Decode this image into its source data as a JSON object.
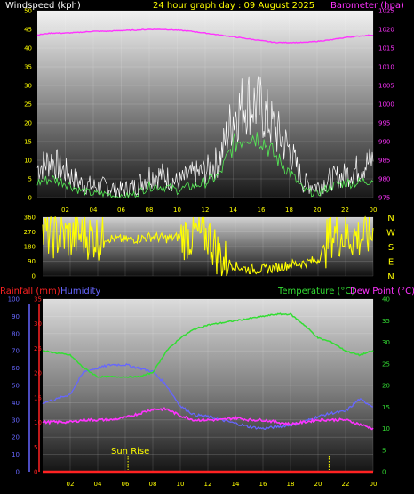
{
  "header": {
    "left_title": "Windspeed (kph)",
    "center_title": "24 hour graph day : 09 August 2025",
    "right_title": "Barometer (hpa)"
  },
  "bottom_header": {
    "rainfall_label": "Rainfall (mm)",
    "humidity_label": "Humidity",
    "temperature_label": "Temperature (°C)",
    "dewpoint_label": "Dew Point (°C)"
  },
  "colors": {
    "windspeed_title": "#ffffff",
    "center_title": "#ffff00",
    "barometer": "#ff33ff",
    "wind_gust": "#ffffff",
    "wind_avg": "#55ee55",
    "direction": "#ffff00",
    "rainfall": "#ff2222",
    "humidity": "#6666ff",
    "temperature": "#33dd33",
    "dewpoint": "#ff33ff",
    "axis_ticks": "#ffff00"
  },
  "annotations": {
    "sunrise": "Sun Rise"
  },
  "chart_data": [
    {
      "type": "line",
      "x_ticks": [
        "02",
        "04",
        "06",
        "08",
        "10",
        "12",
        "14",
        "16",
        "18",
        "20",
        "22",
        "00"
      ],
      "left_axis": {
        "label": "Windspeed (kph)",
        "range": [
          0,
          50
        ],
        "ticks": [
          0,
          5,
          10,
          15,
          20,
          25,
          30,
          35,
          40,
          45,
          50
        ]
      },
      "right_axis": {
        "label": "Barometer (hpa)",
        "range": [
          975,
          1025
        ],
        "ticks": [
          975,
          980,
          985,
          990,
          995,
          1000,
          1005,
          1010,
          1015,
          1020,
          1025
        ]
      },
      "x_hours": [
        0,
        1,
        2,
        3,
        4,
        5,
        6,
        7,
        8,
        9,
        10,
        11,
        12,
        13,
        14,
        15,
        16,
        17,
        18,
        19,
        20,
        21,
        22,
        23,
        24
      ],
      "series": [
        {
          "name": "Barometer",
          "axis": "right",
          "values": [
            1018.5,
            1019,
            1019,
            1019.2,
            1019.5,
            1019.5,
            1019.7,
            1019.8,
            1020,
            1020,
            1019.8,
            1019.5,
            1019,
            1018.5,
            1018,
            1017.5,
            1017,
            1016.5,
            1016.5,
            1016.5,
            1016.8,
            1017.2,
            1017.8,
            1018.2,
            1018.5
          ]
        },
        {
          "name": "Wind gust",
          "axis": "left",
          "values": [
            8,
            10,
            7,
            4,
            3,
            3,
            2,
            3,
            6,
            6,
            4,
            6,
            7,
            10,
            22,
            26,
            24,
            18,
            13,
            4,
            3,
            5,
            6,
            8,
            10
          ]
        },
        {
          "name": "Wind average",
          "axis": "left",
          "values": [
            4,
            5,
            4,
            2,
            1,
            1,
            0,
            1,
            3,
            3,
            2,
            3,
            4,
            6,
            14,
            17,
            16,
            11,
            7,
            2,
            1,
            3,
            4,
            4,
            5
          ]
        }
      ]
    },
    {
      "type": "line",
      "x_ticks": [
        "02",
        "04",
        "06",
        "08",
        "10",
        "12",
        "14",
        "16",
        "18",
        "20",
        "22",
        "00"
      ],
      "left_axis": {
        "range": [
          0,
          360
        ],
        "ticks": [
          0,
          90,
          180,
          270,
          360
        ]
      },
      "right_labels": [
        "N",
        "W",
        "S",
        "E",
        "N"
      ],
      "x_hours": [
        0,
        1,
        2,
        3,
        4,
        5,
        6,
        7,
        8,
        9,
        10,
        11,
        12,
        13,
        14,
        15,
        16,
        17,
        18,
        19,
        20,
        21,
        22,
        23,
        24
      ],
      "series": [
        {
          "name": "Wind direction",
          "values": [
            260,
            250,
            240,
            250,
            240,
            230,
            220,
            230,
            240,
            230,
            240,
            250,
            250,
            100,
            60,
            40,
            40,
            50,
            70,
            80,
            100,
            260,
            250,
            240,
            260
          ]
        }
      ]
    },
    {
      "type": "line",
      "x_ticks": [
        "02",
        "04",
        "06",
        "08",
        "10",
        "12",
        "14",
        "16",
        "18",
        "20",
        "22",
        "00"
      ],
      "axes": {
        "humidity": {
          "range": [
            0,
            100
          ],
          "ticks": [
            0,
            10,
            20,
            30,
            40,
            50,
            60,
            70,
            80,
            90,
            100
          ]
        },
        "rainfall": {
          "range": [
            0,
            35
          ],
          "ticks": [
            0,
            5,
            10,
            15,
            20,
            25,
            30,
            35
          ]
        },
        "temperature": {
          "range": [
            0,
            40
          ],
          "ticks": [
            0,
            5,
            10,
            15,
            20,
            25,
            30,
            35,
            40
          ]
        }
      },
      "x_hours": [
        0,
        1,
        2,
        3,
        4,
        5,
        6,
        7,
        8,
        9,
        10,
        11,
        12,
        13,
        14,
        15,
        16,
        17,
        18,
        19,
        20,
        21,
        22,
        23,
        24
      ],
      "series": [
        {
          "name": "Temperature",
          "axis": "temperature",
          "values": [
            28,
            27.5,
            27,
            24,
            22,
            22,
            22,
            22,
            23,
            28,
            31,
            33,
            34,
            34.5,
            35,
            35.5,
            36,
            36.5,
            36.5,
            34,
            31,
            30,
            28,
            27,
            28
          ]
        },
        {
          "name": "Dew Point",
          "axis": "temperature",
          "values": [
            11.5,
            11.5,
            11.5,
            12,
            12,
            12,
            12.5,
            13.5,
            14.5,
            14.5,
            13,
            12,
            12,
            12,
            12.5,
            12,
            12,
            11.5,
            11,
            11.5,
            12,
            12,
            12,
            11,
            10
          ]
        },
        {
          "name": "Humidity",
          "axis": "humidity",
          "values": [
            40,
            42,
            45,
            58,
            60,
            62,
            62,
            60,
            58,
            50,
            38,
            33,
            32,
            30,
            28,
            26,
            25,
            26,
            27,
            29,
            32,
            34,
            35,
            42,
            38
          ]
        },
        {
          "name": "Rainfall",
          "axis": "rainfall",
          "values": [
            0,
            0,
            0,
            0,
            0,
            0,
            0,
            0,
            0,
            0,
            0,
            0,
            0,
            0,
            0,
            0,
            0,
            0,
            0,
            0,
            0,
            0,
            0,
            0,
            0
          ]
        }
      ]
    }
  ]
}
